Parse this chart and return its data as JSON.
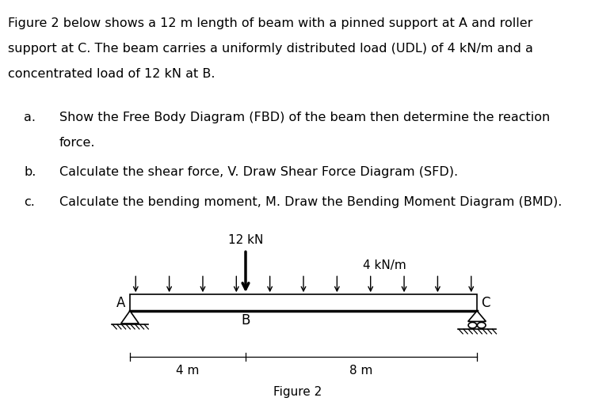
{
  "title_text": "Figure 2",
  "para_line1": "Figure 2 below shows a 12 m length of beam with a pinned support at A and roller",
  "para_line2": "support at C. The beam carries a uniformly distributed load (UDL) of 4 kN/m and a",
  "para_line3": "concentrated load of 12 kN at B.",
  "item_a_label": "a.",
  "item_a_line1": "Show the Free Body Diagram (FBD) of the beam then determine the reaction",
  "item_a_line2": "force.",
  "item_b_label": "b.",
  "item_b_text": "Calculate the shear force, V. Draw Shear Force Diagram (SFD).",
  "item_c_label": "c.",
  "item_c_text": "Calculate the bending moment, M. Draw the Bending Moment Diagram (BMD).",
  "label_A": "A",
  "label_B": "B",
  "label_C": "C",
  "label_12kN": "12 kN",
  "label_udl": "4 kN/m",
  "label_4m": "4 m",
  "label_8m": "8 m",
  "bg_color": "#ffffff",
  "text_color": "#000000",
  "body_fontsize": 11.5,
  "diagram_fontsize": 11
}
